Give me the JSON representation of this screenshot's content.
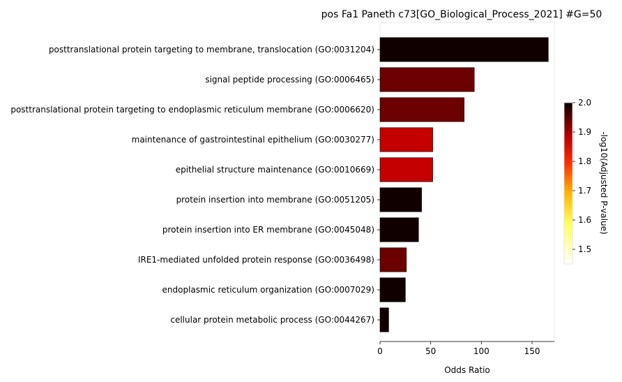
{
  "chart_data": {
    "type": "bar",
    "orientation": "horizontal",
    "title": "pos Fa1 Paneth c73[GO_Biological_Process_2021] #G=50",
    "xlabel": "Odds Ratio",
    "ylabel": "",
    "xlim": [
      0,
      172
    ],
    "xticks": [
      0,
      50,
      100,
      150
    ],
    "categories": [
      "posttranslational protein targeting to membrane, translocation (GO:0031204)",
      "signal peptide processing (GO:0006465)",
      "posttranslational protein targeting to endoplasmic reticulum membrane (GO:0006620)",
      "maintenance of gastrointestinal epithelium (GO:0030277)",
      "epithelial structure maintenance (GO:0010669)",
      "protein insertion into membrane (GO:0051205)",
      "protein insertion into ER membrane (GO:0045048)",
      "IRE1-mediated unfolded protein response (GO:0036498)",
      "endoplasmic reticulum organization (GO:0007029)",
      "cellular protein metabolic process (GO:0044267)"
    ],
    "values": [
      166,
      93,
      83,
      52,
      52,
      41,
      38,
      26,
      25,
      8.5
    ],
    "colors": [
      "#110000",
      "#6c0000",
      "#6c0000",
      "#c40000",
      "#c40000",
      "#110000",
      "#110000",
      "#6c0000",
      "#110000",
      "#110000"
    ],
    "colorbar": {
      "label": "-log10(Adjusted P-value)",
      "min": 1.45,
      "max": 2.0,
      "ticks": [
        1.5,
        1.6,
        1.7,
        1.8,
        1.9,
        2.0
      ],
      "tick_labels": [
        "1.5",
        "1.6",
        "1.7",
        "1.8",
        "1.9",
        "2.0"
      ],
      "colormap": "hot_r"
    },
    "grid": false,
    "legend": "colorbar-right"
  }
}
